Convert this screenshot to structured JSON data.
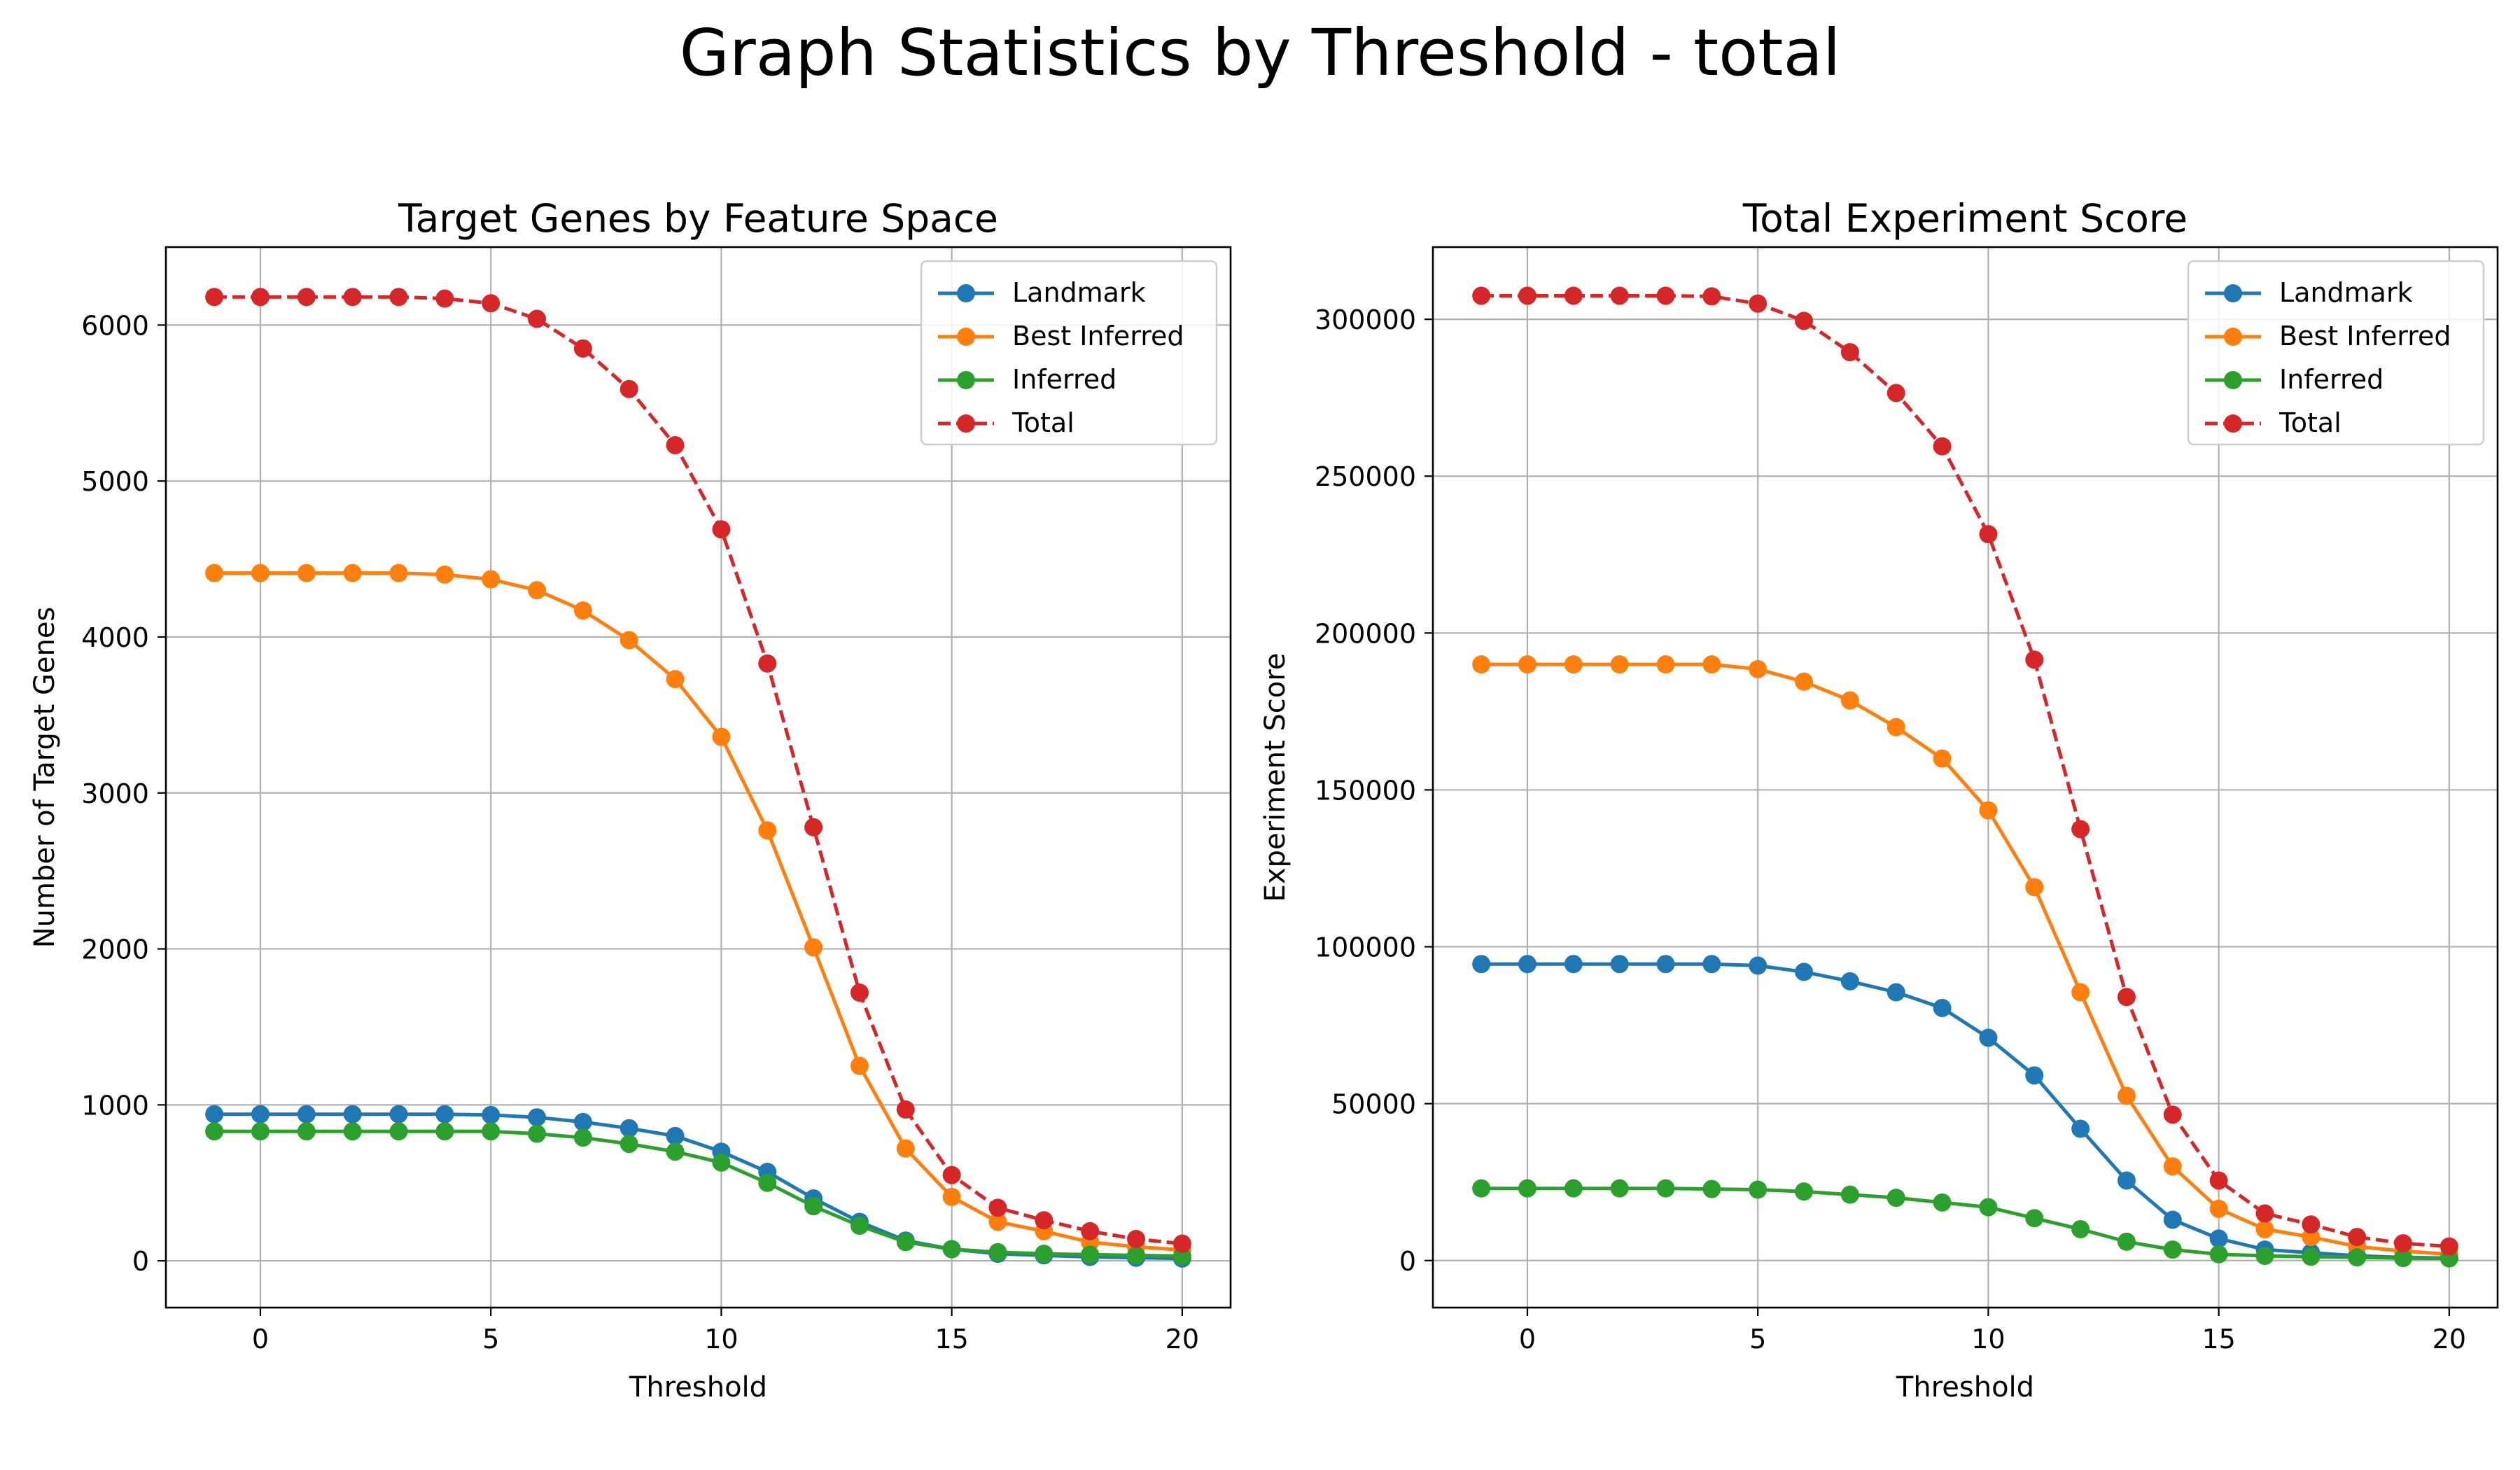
{
  "figure": {
    "title": "Graph Statistics by Threshold - total"
  },
  "chart_data": [
    {
      "type": "line",
      "title": "Target Genes by Feature Space",
      "xlabel": "Threshold",
      "ylabel": "Number of Target Genes",
      "xlim": [
        -2.05,
        21.05
      ],
      "ylim": [
        -300,
        6500
      ],
      "xticks": [
        0,
        5,
        10,
        15,
        20
      ],
      "yticks": [
        0,
        1000,
        2000,
        3000,
        4000,
        5000,
        6000
      ],
      "grid": true,
      "legend_position": "upper right",
      "x": [
        -1,
        0,
        1,
        2,
        3,
        4,
        5,
        6,
        7,
        8,
        9,
        10,
        11,
        12,
        13,
        14,
        15,
        16,
        17,
        18,
        19,
        20
      ],
      "series": [
        {
          "name": "Landmark",
          "color": "#1f77b4",
          "linestyle": "solid",
          "values": [
            940,
            940,
            940,
            940,
            940,
            940,
            935,
            920,
            890,
            850,
            800,
            700,
            570,
            400,
            250,
            130,
            75,
            45,
            35,
            25,
            20,
            15
          ]
        },
        {
          "name": "Best Inferred",
          "color": "#ff7f0e",
          "linestyle": "solid",
          "values": [
            4410,
            4410,
            4410,
            4410,
            4410,
            4400,
            4370,
            4300,
            4170,
            3980,
            3730,
            3360,
            2760,
            2010,
            1250,
            720,
            410,
            250,
            190,
            120,
            90,
            70
          ]
        },
        {
          "name": "Inferred",
          "color": "#2ca02c",
          "linestyle": "solid",
          "values": [
            830,
            830,
            830,
            830,
            830,
            830,
            830,
            815,
            790,
            750,
            700,
            630,
            500,
            350,
            225,
            120,
            75,
            55,
            45,
            40,
            35,
            30
          ]
        },
        {
          "name": "Total",
          "color": "#d62728",
          "linestyle": "dashed",
          "values": [
            6180,
            6180,
            6180,
            6180,
            6180,
            6170,
            6140,
            6040,
            5850,
            5590,
            5230,
            4690,
            3830,
            2780,
            1720,
            970,
            550,
            340,
            260,
            190,
            140,
            110
          ]
        }
      ]
    },
    {
      "type": "line",
      "title": "Total Experiment Score",
      "xlabel": "Threshold",
      "ylabel": "Experiment Score",
      "xlim": [
        -2.05,
        21.05
      ],
      "ylim": [
        -15000,
        323000
      ],
      "xticks": [
        0,
        5,
        10,
        15,
        20
      ],
      "yticks": [
        0,
        50000,
        100000,
        150000,
        200000,
        250000,
        300000
      ],
      "grid": true,
      "legend_position": "upper right",
      "x": [
        -1,
        0,
        1,
        2,
        3,
        4,
        5,
        6,
        7,
        8,
        9,
        10,
        11,
        12,
        13,
        14,
        15,
        16,
        17,
        18,
        19,
        20
      ],
      "series": [
        {
          "name": "Landmark",
          "color": "#1f77b4",
          "linestyle": "solid",
          "values": [
            94500,
            94500,
            94500,
            94500,
            94500,
            94500,
            94000,
            92000,
            89000,
            85500,
            80500,
            71000,
            59000,
            42000,
            25500,
            13000,
            7000,
            3500,
            2500,
            1500,
            1000,
            800
          ]
        },
        {
          "name": "Best Inferred",
          "color": "#ff7f0e",
          "linestyle": "solid",
          "values": [
            190000,
            190000,
            190000,
            190000,
            190000,
            190000,
            188500,
            184500,
            178500,
            170000,
            160000,
            143500,
            119000,
            85500,
            52500,
            30000,
            16500,
            10000,
            7500,
            4500,
            3000,
            2000
          ]
        },
        {
          "name": "Inferred",
          "color": "#2ca02c",
          "linestyle": "solid",
          "values": [
            23000,
            23000,
            23000,
            23000,
            23000,
            22800,
            22600,
            22000,
            21000,
            20000,
            18500,
            17000,
            13500,
            10000,
            6000,
            3500,
            2000,
            1500,
            1200,
            1000,
            800,
            700
          ]
        },
        {
          "name": "Total",
          "color": "#d62728",
          "linestyle": "dashed",
          "values": [
            307500,
            307500,
            307500,
            307500,
            307500,
            307300,
            305000,
            299500,
            289500,
            276500,
            259500,
            231500,
            191500,
            137500,
            84000,
            46500,
            25500,
            15000,
            11500,
            7500,
            5500,
            4500
          ]
        }
      ]
    }
  ]
}
